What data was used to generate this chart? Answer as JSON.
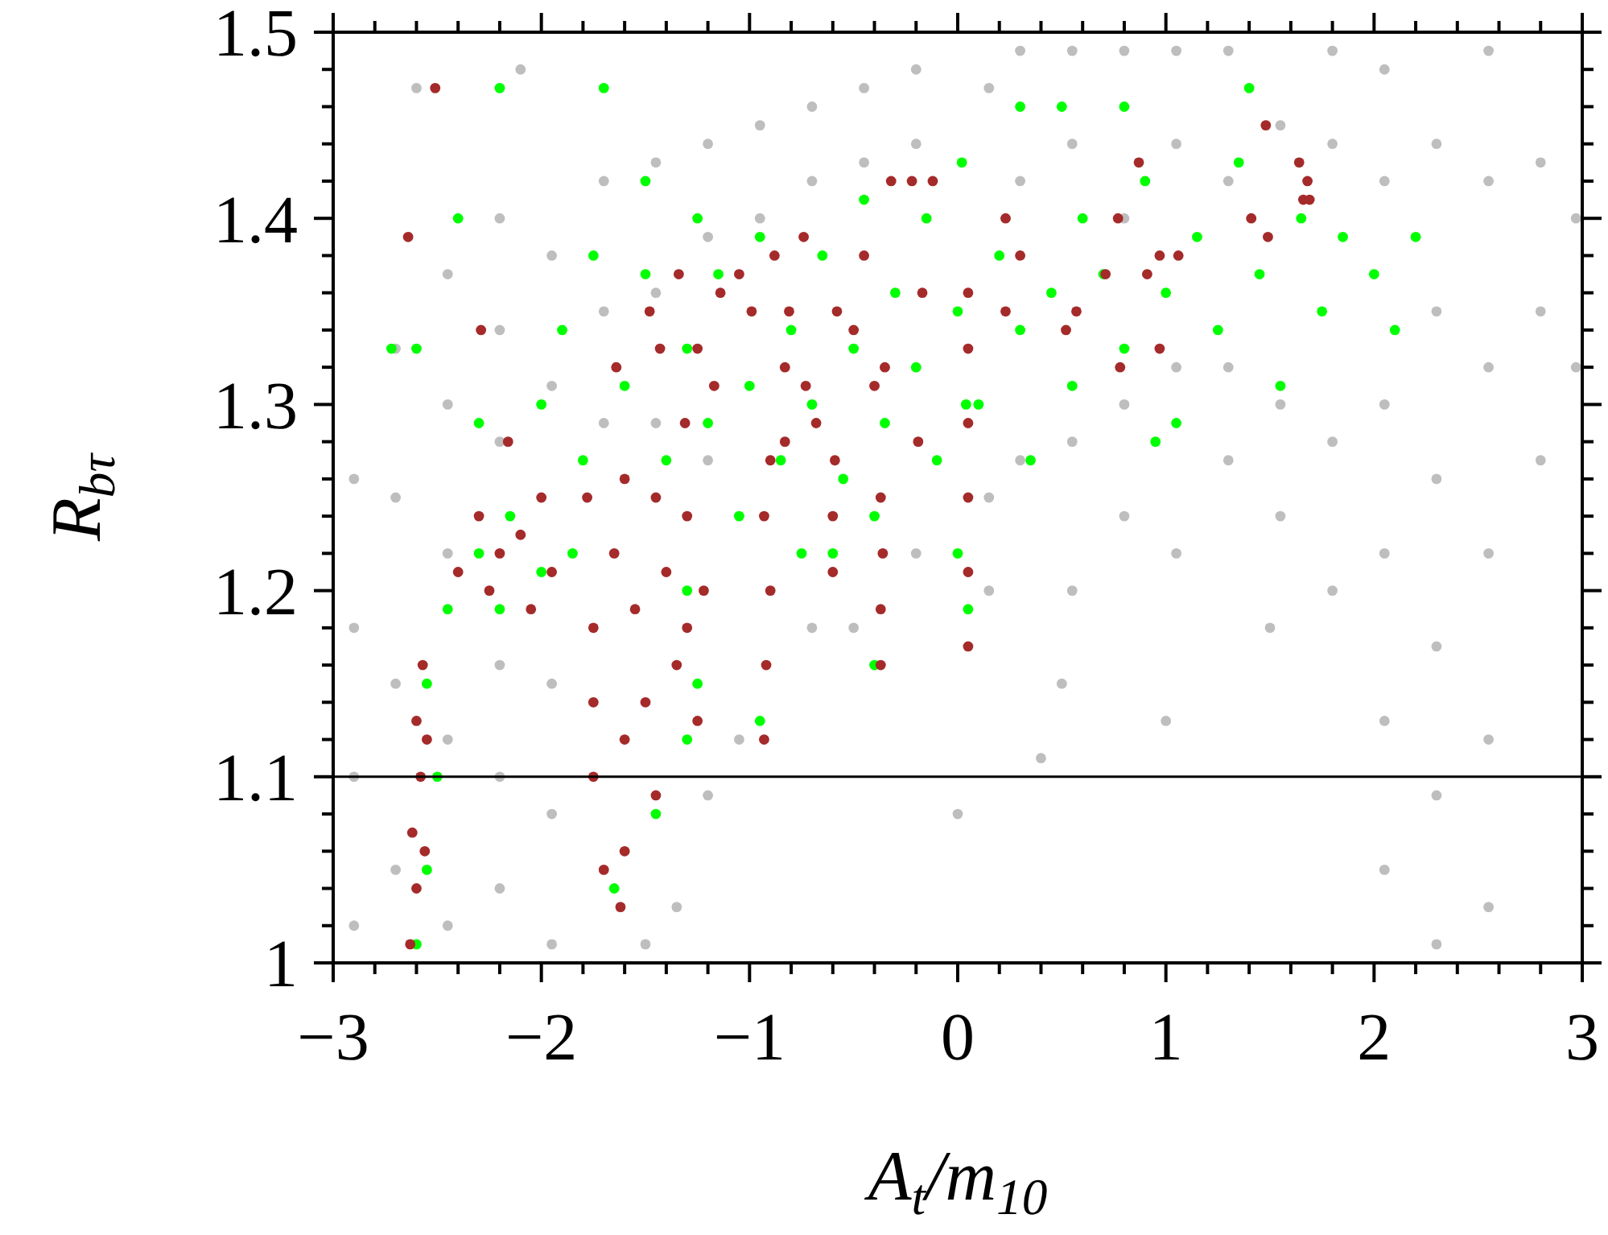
{
  "chart_data": {
    "type": "scatter",
    "xlabel": "A$_{t}$/m$_{10}$",
    "ylabel": "R$_{bτ}$",
    "xlim": [
      -3,
      3
    ],
    "ylim": [
      1,
      1.5
    ],
    "xticks": [
      {
        "value": -3,
        "label": "−3"
      },
      {
        "value": -2.8,
        "label": null
      },
      {
        "value": -2.6,
        "label": null
      },
      {
        "value": -2.4,
        "label": null
      },
      {
        "value": -2.2,
        "label": null
      },
      {
        "value": -2,
        "label": "−2"
      },
      {
        "value": -1.8,
        "label": null
      },
      {
        "value": -1.6,
        "label": null
      },
      {
        "value": -1.4,
        "label": null
      },
      {
        "value": -1.2,
        "label": null
      },
      {
        "value": -1,
        "label": "−1"
      },
      {
        "value": -0.8,
        "label": null
      },
      {
        "value": -0.6,
        "label": null
      },
      {
        "value": -0.4,
        "label": null
      },
      {
        "value": -0.2,
        "label": null
      },
      0,
      {
        "value": 0.2,
        "label": null
      },
      {
        "value": 0.4,
        "label": null
      },
      {
        "value": 0.6,
        "label": null
      },
      {
        "value": 0.8,
        "label": null
      },
      1,
      {
        "value": 1.2,
        "label": null
      },
      {
        "value": 1.4,
        "label": null
      },
      {
        "value": 1.6,
        "label": null
      },
      {
        "value": 1.8,
        "label": null
      },
      2,
      {
        "value": 2.2,
        "label": null
      },
      {
        "value": 2.4,
        "label": null
      },
      {
        "value": 2.6,
        "label": null
      },
      {
        "value": 2.8,
        "label": null
      },
      3
    ],
    "yticks": [
      1,
      {
        "value": 1.02,
        "label": null
      },
      {
        "value": 1.04,
        "label": null
      },
      {
        "value": 1.06,
        "label": null
      },
      {
        "value": 1.08,
        "label": null
      },
      1.1,
      {
        "value": 1.12,
        "label": null
      },
      {
        "value": 1.14,
        "label": null
      },
      {
        "value": 1.16,
        "label": null
      },
      {
        "value": 1.18,
        "label": null
      },
      1.2,
      {
        "value": 1.22,
        "label": null
      },
      {
        "value": 1.24,
        "label": null
      },
      {
        "value": 1.26,
        "label": null
      },
      {
        "value": 1.28,
        "label": null
      },
      1.3,
      {
        "value": 1.32,
        "label": null
      },
      {
        "value": 1.34,
        "label": null
      },
      {
        "value": 1.36,
        "label": null
      },
      {
        "value": 1.38,
        "label": null
      },
      1.4,
      {
        "value": 1.42,
        "label": null
      },
      {
        "value": 1.44,
        "label": null
      },
      {
        "value": 1.46,
        "label": null
      },
      {
        "value": 1.48,
        "label": null
      },
      1.5
    ],
    "marker": "circle",
    "ref_lines": [
      {
        "axis": "y",
        "value": 1.1,
        "color": "#000000"
      }
    ],
    "series": [
      {
        "color": "#bebebe",
        "x": [
          -2.9,
          -2.9,
          -2.9,
          -2.9,
          -2.7,
          -2.7,
          -2.7,
          -2.7,
          -2.45,
          -2.45,
          -2.45,
          -2.45,
          -2.45,
          -2.2,
          -2.2,
          -2.2,
          -2.2,
          -2.2,
          -2.2,
          -1.95,
          -1.95,
          -1.95,
          -1.95,
          -1.95,
          -1.7,
          -1.7,
          -1.7,
          -1.45,
          -1.45,
          -1.45,
          -1.5,
          -1.35,
          -1.2,
          -1.2,
          -1.2,
          -1.2,
          -0.95,
          -0.95,
          -1.05,
          -0.7,
          -0.7,
          -0.7,
          -0.45,
          -0.45,
          -0.5,
          -0.2,
          -0.2,
          -0.2,
          0.0,
          0.15,
          0.15,
          0.15,
          0.3,
          0.3,
          0.3,
          0.55,
          0.55,
          0.55,
          0.55,
          0.8,
          0.8,
          0.8,
          0.8,
          1.05,
          1.05,
          1.05,
          1.05,
          1.3,
          1.3,
          1.3,
          1.3,
          1.55,
          1.55,
          1.55,
          1.8,
          1.8,
          1.8,
          1.8,
          2.05,
          2.05,
          2.05,
          2.05,
          2.05,
          2.05,
          2.3,
          2.3,
          2.3,
          2.3,
          2.3,
          2.3,
          2.55,
          2.55,
          2.55,
          2.55,
          2.55,
          2.55,
          2.8,
          2.8,
          2.8,
          2.97,
          2.97,
          -2.6,
          -2.1,
          0.5,
          1.0,
          1.5,
          0.4
        ],
        "values": [
          1.02,
          1.1,
          1.18,
          1.26,
          1.05,
          1.15,
          1.25,
          1.33,
          1.02,
          1.12,
          1.22,
          1.3,
          1.37,
          1.04,
          1.1,
          1.16,
          1.28,
          1.34,
          1.4,
          1.01,
          1.08,
          1.15,
          1.31,
          1.38,
          1.29,
          1.35,
          1.42,
          1.29,
          1.36,
          1.43,
          1.01,
          1.03,
          1.09,
          1.27,
          1.39,
          1.44,
          1.4,
          1.45,
          1.12,
          1.18,
          1.42,
          1.46,
          1.43,
          1.47,
          1.18,
          1.22,
          1.44,
          1.48,
          1.08,
          1.25,
          1.47,
          1.2,
          1.27,
          1.42,
          1.49,
          1.2,
          1.28,
          1.44,
          1.49,
          1.24,
          1.3,
          1.4,
          1.49,
          1.22,
          1.32,
          1.44,
          1.49,
          1.27,
          1.32,
          1.42,
          1.49,
          1.24,
          1.3,
          1.45,
          1.2,
          1.28,
          1.44,
          1.49,
          1.05,
          1.13,
          1.22,
          1.3,
          1.42,
          1.48,
          1.01,
          1.09,
          1.17,
          1.26,
          1.35,
          1.44,
          1.03,
          1.12,
          1.22,
          1.32,
          1.42,
          1.49,
          1.27,
          1.35,
          1.43,
          1.32,
          1.4,
          1.47,
          1.48,
          1.15,
          1.13,
          1.18,
          1.11
        ]
      },
      {
        "color": "#00ff00",
        "x": [
          -2.45,
          -2.3,
          -2.15,
          -2.0,
          -2.2,
          -2.55,
          -2.6,
          -2.55,
          -1.65,
          -1.45,
          -1.3,
          -1.4,
          -1.3,
          -1.2,
          -1.15,
          -1.05,
          -1.0,
          -0.95,
          -0.85,
          -0.8,
          -0.75,
          -0.7,
          -0.65,
          -0.55,
          -0.5,
          -0.45,
          -0.4,
          -0.35,
          -0.3,
          -0.2,
          -0.15,
          -0.1,
          0.0,
          0.02,
          0.0,
          -2.6,
          -2.3,
          -2.0,
          -1.8,
          -1.9,
          -1.6,
          -1.5,
          -1.75,
          -1.25,
          -2.4,
          -2.2,
          -1.7,
          -1.5,
          0.1,
          0.2,
          0.3,
          0.35,
          0.45,
          0.55,
          0.6,
          0.7,
          0.8,
          0.9,
          1.0,
          1.05,
          1.15,
          1.25,
          1.35,
          1.45,
          1.55,
          1.65,
          1.75,
          1.85,
          2.0,
          2.1,
          2.2,
          1.4,
          0.8,
          0.5,
          0.95,
          0.3,
          -0.95,
          -0.6,
          -0.4,
          0.05,
          0.04,
          -1.25,
          -1.3,
          -1.85,
          -2.5,
          -2.72
        ],
        "values": [
          1.19,
          1.22,
          1.24,
          1.21,
          1.19,
          1.15,
          1.01,
          1.05,
          1.04,
          1.08,
          1.12,
          1.27,
          1.33,
          1.29,
          1.37,
          1.24,
          1.31,
          1.39,
          1.27,
          1.34,
          1.22,
          1.3,
          1.38,
          1.26,
          1.33,
          1.41,
          1.24,
          1.29,
          1.36,
          1.32,
          1.4,
          1.27,
          1.35,
          1.43,
          1.22,
          1.33,
          1.29,
          1.3,
          1.27,
          1.34,
          1.31,
          1.37,
          1.38,
          1.4,
          1.4,
          1.47,
          1.47,
          1.42,
          1.3,
          1.38,
          1.34,
          1.27,
          1.36,
          1.31,
          1.4,
          1.37,
          1.33,
          1.42,
          1.36,
          1.29,
          1.39,
          1.34,
          1.43,
          1.37,
          1.31,
          1.4,
          1.35,
          1.39,
          1.37,
          1.34,
          1.39,
          1.47,
          1.46,
          1.46,
          1.28,
          1.46,
          1.13,
          1.22,
          1.16,
          1.19,
          1.3,
          1.15,
          1.2,
          1.22,
          1.1,
          1.33
        ]
      },
      {
        "color": "#a52a2a",
        "x": [
          -2.63,
          -2.6,
          -2.62,
          -2.58,
          -2.6,
          -2.57,
          -2.55,
          -2.56,
          -2.3,
          -2.2,
          -2.1,
          -2.0,
          -1.95,
          -2.25,
          -2.4,
          -2.05,
          -1.78,
          -1.6,
          -1.45,
          -1.3,
          -1.22,
          -1.75,
          -1.55,
          -1.35,
          -1.25,
          -1.75,
          -1.6,
          -1.45,
          -1.7,
          -1.6,
          -1.75,
          -1.5,
          -1.4,
          -1.65,
          -1.3,
          -1.62,
          -0.93,
          -0.92,
          -0.9,
          -0.93,
          -0.9,
          -0.6,
          -0.6,
          -0.59,
          -0.37,
          -0.37,
          -0.36,
          -0.37,
          0.05,
          0.05,
          0.05,
          0.05,
          0.05,
          0.05,
          -2.51,
          -2.64,
          -2.29,
          -2.16,
          -1.34,
          -1.05,
          -0.88,
          -0.74,
          -0.45,
          -0.32,
          -0.22,
          -0.12,
          -1.48,
          -1.14,
          -0.99,
          -0.81,
          -0.58,
          -0.5,
          -1.25,
          -0.83,
          -0.35,
          -1.17,
          -0.73,
          -0.4,
          -1.31,
          -0.83,
          -0.68,
          -0.19,
          -1.64,
          -1.43,
          -0.17,
          0.23,
          0.3,
          0.23,
          0.87,
          0.77,
          0.71,
          0.91,
          0.97,
          1.06,
          0.57,
          0.52,
          0.78,
          0.97,
          1.41,
          1.49,
          1.48,
          1.64,
          1.68,
          1.66,
          1.69
        ],
        "values": [
          1.01,
          1.04,
          1.07,
          1.1,
          1.13,
          1.16,
          1.12,
          1.06,
          1.24,
          1.22,
          1.23,
          1.25,
          1.21,
          1.2,
          1.21,
          1.19,
          1.25,
          1.26,
          1.25,
          1.24,
          1.2,
          1.18,
          1.19,
          1.16,
          1.13,
          1.1,
          1.12,
          1.09,
          1.05,
          1.06,
          1.14,
          1.14,
          1.21,
          1.22,
          1.18,
          1.03,
          1.12,
          1.16,
          1.2,
          1.24,
          1.27,
          1.21,
          1.24,
          1.27,
          1.16,
          1.19,
          1.22,
          1.25,
          1.17,
          1.21,
          1.25,
          1.29,
          1.33,
          1.36,
          1.47,
          1.39,
          1.34,
          1.28,
          1.37,
          1.37,
          1.38,
          1.39,
          1.38,
          1.42,
          1.42,
          1.42,
          1.35,
          1.36,
          1.35,
          1.35,
          1.35,
          1.34,
          1.33,
          1.32,
          1.32,
          1.31,
          1.31,
          1.31,
          1.29,
          1.28,
          1.29,
          1.28,
          1.32,
          1.33,
          1.36,
          1.4,
          1.38,
          1.35,
          1.43,
          1.4,
          1.37,
          1.37,
          1.38,
          1.38,
          1.35,
          1.34,
          1.32,
          1.33,
          1.4,
          1.39,
          1.45,
          1.43,
          1.42,
          1.41,
          1.41
        ]
      }
    ]
  }
}
